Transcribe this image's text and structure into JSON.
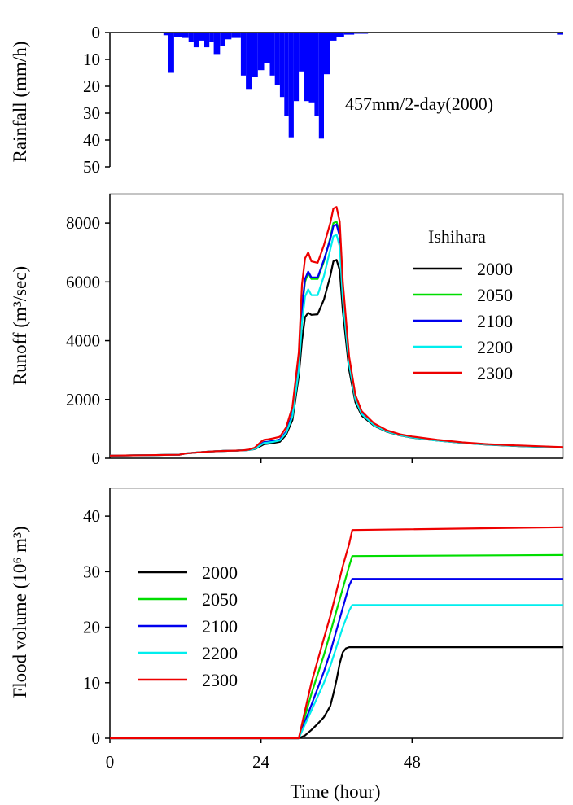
{
  "chart_data": [
    {
      "type": "bar",
      "panel": "rainfall",
      "ylabel": "Rainfall (mm/h)",
      "ylim": [
        0,
        50
      ],
      "y_inverted": true,
      "yticks": [
        "0",
        "10",
        "20",
        "30",
        "40",
        "50"
      ],
      "xlim": [
        0,
        72
      ],
      "annotation": "457mm/2-day(2000)",
      "color": "#0000ff",
      "bars": [
        {
          "x0": 8.5,
          "x1": 9.2,
          "value": 1
        },
        {
          "x0": 9.2,
          "x1": 10.2,
          "value": 15
        },
        {
          "x0": 10.2,
          "x1": 11.5,
          "value": 1.5
        },
        {
          "x0": 11.5,
          "x1": 12.5,
          "value": 2
        },
        {
          "x0": 12.5,
          "x1": 13.3,
          "value": 3.5
        },
        {
          "x0": 13.3,
          "x1": 14.2,
          "value": 5.5
        },
        {
          "x0": 14.2,
          "x1": 15,
          "value": 3
        },
        {
          "x0": 15,
          "x1": 15.8,
          "value": 5.5
        },
        {
          "x0": 15.8,
          "x1": 16.5,
          "value": 3.5
        },
        {
          "x0": 16.5,
          "x1": 17.5,
          "value": 8
        },
        {
          "x0": 17.5,
          "x1": 18.3,
          "value": 5
        },
        {
          "x0": 18.3,
          "x1": 19.3,
          "value": 2.5
        },
        {
          "x0": 19.3,
          "x1": 20.8,
          "value": 2
        },
        {
          "x0": 20.8,
          "x1": 21.6,
          "value": 16
        },
        {
          "x0": 21.6,
          "x1": 22.6,
          "value": 21
        },
        {
          "x0": 22.6,
          "x1": 23.5,
          "value": 16.5
        },
        {
          "x0": 23.5,
          "x1": 24.5,
          "value": 14
        },
        {
          "x0": 24.5,
          "x1": 25.4,
          "value": 11.5
        },
        {
          "x0": 25.4,
          "x1": 26.2,
          "value": 16
        },
        {
          "x0": 26.2,
          "x1": 27,
          "value": 19.5
        },
        {
          "x0": 27,
          "x1": 27.7,
          "value": 24
        },
        {
          "x0": 27.7,
          "x1": 28.4,
          "value": 31
        },
        {
          "x0": 28.4,
          "x1": 29.2,
          "value": 39
        },
        {
          "x0": 29.2,
          "x1": 30,
          "value": 25.5
        },
        {
          "x0": 30,
          "x1": 30.8,
          "value": 14.5
        },
        {
          "x0": 30.8,
          "x1": 31.6,
          "value": 25.5
        },
        {
          "x0": 31.6,
          "x1": 32.5,
          "value": 26
        },
        {
          "x0": 32.5,
          "x1": 33.2,
          "value": 31
        },
        {
          "x0": 33.2,
          "x1": 34,
          "value": 39.5
        },
        {
          "x0": 34,
          "x1": 35,
          "value": 15.5
        },
        {
          "x0": 35,
          "x1": 36,
          "value": 3
        },
        {
          "x0": 36,
          "x1": 37.2,
          "value": 1.5
        },
        {
          "x0": 37.2,
          "x1": 38.8,
          "value": 0.8
        },
        {
          "x0": 38.8,
          "x1": 41,
          "value": 0.4
        },
        {
          "x0": 71,
          "x1": 72,
          "value": 0.8
        }
      ]
    },
    {
      "type": "line",
      "panel": "runoff",
      "ylabel": "Runoff (m³/sec)",
      "ylim": [
        0,
        9000
      ],
      "yticks": [
        "0",
        "2000",
        "4000",
        "6000",
        "8000"
      ],
      "xlim": [
        0,
        72
      ],
      "legend_title": "Ishihara",
      "legend_placement": "right",
      "x": [
        0,
        11,
        12,
        14,
        16,
        18,
        20,
        21,
        22,
        23,
        24,
        24.5,
        25,
        26,
        27,
        28,
        29,
        30,
        30.5,
        31,
        31.5,
        32,
        33,
        34,
        35,
        35.5,
        36,
        36.5,
        37,
        38,
        39,
        40,
        42,
        44,
        46,
        48,
        52,
        56,
        60,
        64,
        68,
        72
      ],
      "series": [
        {
          "name": "2000",
          "color": "#000000",
          "values": [
            90,
            120,
            160,
            200,
            230,
            250,
            260,
            270,
            280,
            310,
            420,
            480,
            490,
            520,
            560,
            800,
            1300,
            2800,
            4000,
            4800,
            4950,
            4880,
            4900,
            5400,
            6200,
            6700,
            6750,
            6400,
            5000,
            3000,
            1900,
            1450,
            1100,
            900,
            780,
            700,
            600,
            520,
            460,
            420,
            390,
            360
          ]
        },
        {
          "name": "2050",
          "color": "#00dd00",
          "values": [
            90,
            120,
            160,
            200,
            230,
            250,
            260,
            270,
            280,
            330,
            480,
            550,
            560,
            590,
            640,
            900,
            1500,
            3200,
            5100,
            6000,
            6300,
            6100,
            6100,
            6700,
            7500,
            8000,
            8050,
            7600,
            5700,
            3300,
            2050,
            1550,
            1150,
            930,
            800,
            720,
            610,
            530,
            470,
            430,
            400,
            370
          ]
        },
        {
          "name": "2100",
          "color": "#0000ee",
          "values": [
            90,
            120,
            160,
            200,
            230,
            250,
            260,
            270,
            280,
            330,
            480,
            550,
            560,
            590,
            640,
            900,
            1500,
            3200,
            5100,
            6100,
            6350,
            6150,
            6150,
            6750,
            7450,
            7900,
            7950,
            7550,
            5650,
            3300,
            2050,
            1550,
            1150,
            930,
            800,
            720,
            610,
            530,
            470,
            430,
            400,
            370
          ]
        },
        {
          "name": "2200",
          "color": "#00eeee",
          "values": [
            90,
            120,
            160,
            200,
            230,
            250,
            260,
            270,
            280,
            320,
            460,
            520,
            530,
            560,
            610,
            860,
            1420,
            3000,
            4600,
            5500,
            5750,
            5550,
            5550,
            6200,
            7100,
            7550,
            7600,
            7200,
            5400,
            3200,
            2000,
            1500,
            1120,
            910,
            790,
            710,
            600,
            525,
            465,
            425,
            395,
            365
          ]
        },
        {
          "name": "2300",
          "color": "#ee0000",
          "values": [
            90,
            120,
            160,
            200,
            230,
            250,
            260,
            270,
            290,
            360,
            560,
            630,
            640,
            680,
            730,
            1050,
            1750,
            3600,
            5900,
            6800,
            7000,
            6700,
            6650,
            7250,
            8000,
            8500,
            8550,
            8050,
            6000,
            3450,
            2150,
            1600,
            1180,
            950,
            820,
            740,
            625,
            540,
            480,
            440,
            410,
            380
          ]
        }
      ]
    },
    {
      "type": "line",
      "panel": "flood_volume",
      "ylabel": "Flood volume (10⁶ m³)",
      "ylim": [
        0,
        45
      ],
      "yticks": [
        "0",
        "10",
        "20",
        "30",
        "40"
      ],
      "xlim": [
        0,
        72
      ],
      "xlabel": "Time (hour)",
      "xticks": [
        "0",
        "24",
        "48"
      ],
      "legend_placement": "left",
      "series": [
        {
          "name": "2000",
          "color": "#000000",
          "x": [
            0,
            30,
            31,
            32,
            33,
            34,
            35,
            35.5,
            36,
            36.5,
            37,
            37.5,
            38,
            72
          ],
          "values": [
            0,
            0,
            0.5,
            1.5,
            2.6,
            3.8,
            5.8,
            8,
            10.5,
            13.5,
            15.5,
            16.2,
            16.4,
            16.4
          ]
        },
        {
          "name": "2050",
          "color": "#00dd00",
          "x": [
            0,
            30,
            31,
            32,
            33,
            34,
            35,
            36,
            37,
            38,
            38.5,
            72
          ],
          "values": [
            0,
            0,
            4,
            8,
            11.5,
            15,
            19,
            23,
            27,
            31,
            32.8,
            33
          ]
        },
        {
          "name": "2100",
          "color": "#0000ee",
          "x": [
            0,
            30,
            31,
            32,
            33,
            34,
            35,
            36,
            37,
            38,
            38.5,
            72
          ],
          "values": [
            0,
            0,
            3,
            6,
            9,
            12,
            15.5,
            19.5,
            23.5,
            27.5,
            28.7,
            28.7
          ]
        },
        {
          "name": "2200",
          "color": "#00eeee",
          "x": [
            0,
            30,
            31,
            32,
            33,
            34,
            35,
            36,
            37,
            38,
            38.5,
            72
          ],
          "values": [
            0,
            0,
            2.5,
            5,
            7.5,
            10,
            13,
            16.5,
            20,
            23,
            24,
            24
          ]
        },
        {
          "name": "2300",
          "color": "#ee0000",
          "x": [
            0,
            30,
            31,
            32,
            33,
            34,
            35,
            36,
            37,
            38,
            38.5,
            72
          ],
          "values": [
            0,
            0,
            5,
            10,
            14,
            18,
            22,
            26.5,
            31,
            35,
            37.5,
            38
          ]
        }
      ]
    }
  ]
}
